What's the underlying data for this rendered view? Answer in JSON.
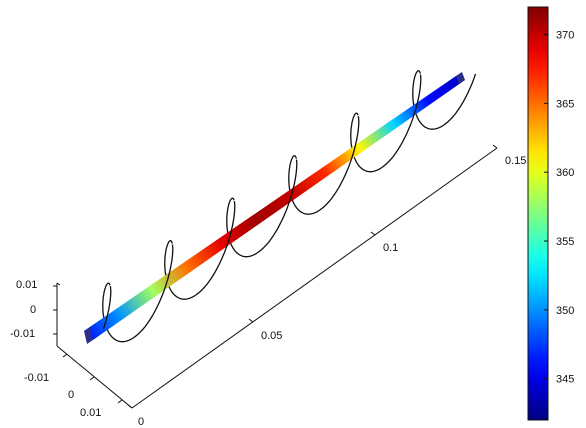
{
  "figure": {
    "axes": {
      "x_ticks": [
        "0",
        "0.05",
        "0.1",
        "0.15"
      ],
      "y_ticks": [
        "-0.01",
        "0",
        "0.01"
      ],
      "z_ticks": [
        "0.01",
        "0",
        "-0.01"
      ]
    },
    "colorbar": {
      "ticks": [
        "370",
        "365",
        "360",
        "355",
        "350",
        "345"
      ],
      "colormap": "jet",
      "range": [
        342,
        372
      ]
    },
    "beam": {
      "temperature_profile": [
        346,
        350,
        358,
        365,
        369,
        371,
        370,
        367,
        361,
        352,
        346,
        344
      ]
    },
    "helix": {
      "turns": 6,
      "color": "#111111"
    }
  }
}
